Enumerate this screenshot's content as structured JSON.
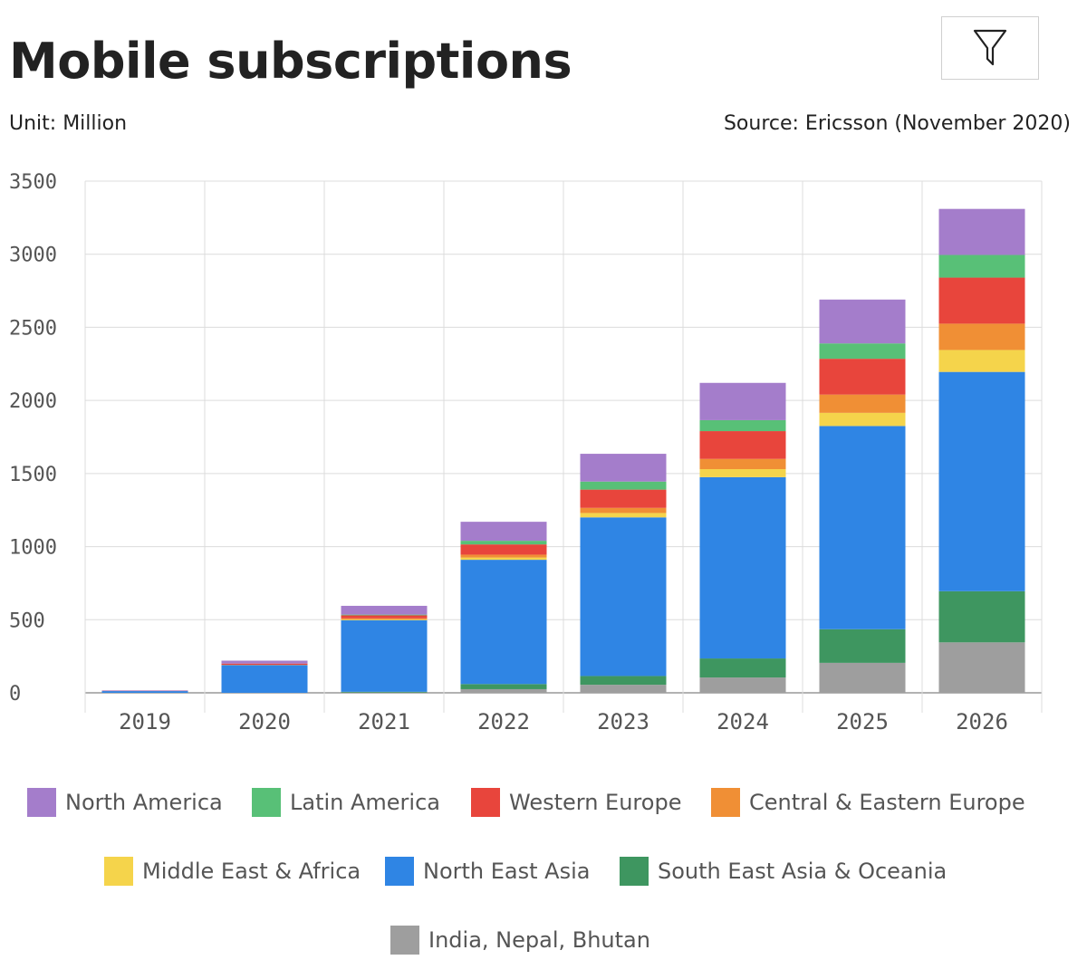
{
  "header": {
    "title": "Mobile subscriptions",
    "unit": "Unit: Million",
    "source": "Source: Ericsson (November 2020)"
  },
  "toolbar": {
    "filter_icon": "filter-icon"
  },
  "chart_data": {
    "type": "bar",
    "stacked": true,
    "categories": [
      "2019",
      "2020",
      "2021",
      "2022",
      "2023",
      "2024",
      "2025",
      "2026"
    ],
    "ylim": [
      0,
      3500
    ],
    "yticks": [
      "0",
      "500",
      "1000",
      "1500",
      "2000",
      "2500",
      "3000",
      "3500"
    ],
    "grid": true,
    "legend_position": "bottom",
    "series": [
      {
        "name": "India, Nepal, Bhutan",
        "color": "#9e9e9e",
        "values": [
          0,
          0,
          2,
          25,
          55,
          105,
          205,
          345
        ]
      },
      {
        "name": "South East Asia & Oceania",
        "color": "#3e9660",
        "values": [
          0,
          0,
          5,
          35,
          60,
          130,
          230,
          350
        ]
      },
      {
        "name": "North East Asia",
        "color": "#2f85e4",
        "values": [
          12,
          190,
          490,
          850,
          1085,
          1240,
          1390,
          1500
        ]
      },
      {
        "name": "Middle East & Africa",
        "color": "#f5d44b",
        "values": [
          0,
          0,
          5,
          15,
          30,
          55,
          90,
          150
        ]
      },
      {
        "name": "Central & Eastern Europe",
        "color": "#f08f35",
        "values": [
          0,
          2,
          8,
          20,
          35,
          70,
          125,
          180
        ]
      },
      {
        "name": "Western Europe",
        "color": "#e8453c",
        "values": [
          2,
          8,
          20,
          70,
          125,
          190,
          245,
          315
        ]
      },
      {
        "name": "Latin America",
        "color": "#58c077",
        "values": [
          0,
          0,
          5,
          25,
          55,
          75,
          105,
          155
        ]
      },
      {
        "name": "North America",
        "color": "#a47dcb",
        "values": [
          3,
          20,
          60,
          130,
          190,
          255,
          300,
          315
        ]
      }
    ]
  },
  "legend": {
    "items": [
      {
        "label": "North America",
        "color": "#a47dcb"
      },
      {
        "label": "Latin America",
        "color": "#58c077"
      },
      {
        "label": "Western Europe",
        "color": "#e8453c"
      },
      {
        "label": "Central & Eastern Europe",
        "color": "#f08f35"
      },
      {
        "label": "Middle East & Africa",
        "color": "#f5d44b"
      },
      {
        "label": "North East Asia",
        "color": "#2f85e4"
      },
      {
        "label": "South East Asia & Oceania",
        "color": "#3e9660"
      },
      {
        "label": "India, Nepal, Bhutan",
        "color": "#9e9e9e"
      }
    ]
  }
}
